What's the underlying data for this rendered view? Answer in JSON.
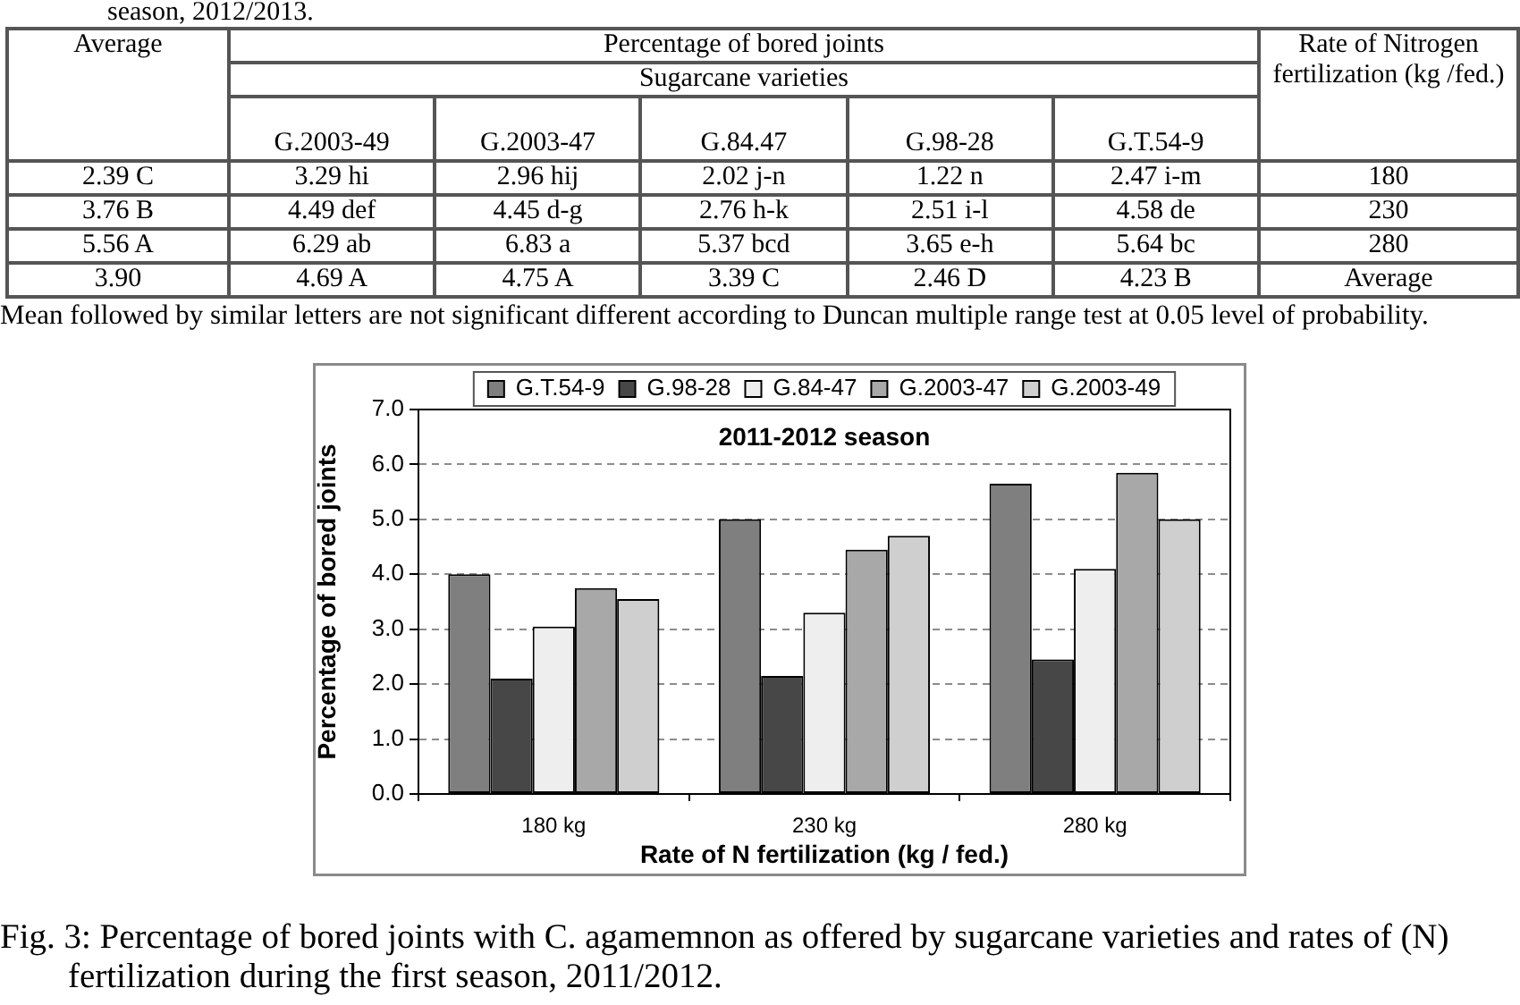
{
  "chart_data": [
    {
      "type": "other",
      "title": "season, 2012/2013.",
      "categories": [
        "Average",
        "G.2003-49",
        "G.2003-47",
        "G.84.47",
        "G.98-28",
        "G.T.54-9",
        "Rate of Nitrogen fertilization (kg /fed.)"
      ],
      "cell_labels": [
        [
          "2.39 C",
          "3.29 hi",
          "2.96 hij",
          "2.02 j-n",
          "1.22 n",
          "2.47 i-m",
          "180"
        ],
        [
          "3.76 B",
          "4.49 def",
          "4.45 d-g",
          "2.76 h-k",
          "2.51 i-l",
          "4.58 de",
          "230"
        ],
        [
          "5.56 A",
          "6.29 ab",
          "6.83 a",
          "5.37 bcd",
          "3.65 e-h",
          "5.64 bc",
          "280"
        ],
        [
          "3.90",
          "4.69 A",
          "4.75 A",
          "3.39 C",
          "2.46 D",
          "4.23 B",
          "Average"
        ]
      ],
      "annotations": [
        "Percentage of bored joints",
        "Sugarcane varieties",
        "Mean followed by similar letters are not significant different according to Duncan multiple range test at 0.05 level of probability."
      ]
    },
    {
      "type": "bar",
      "title": "2011-2012 season",
      "xlabel": "Rate of N fertilization (kg / fed.)",
      "ylabel": "Percentage of bored joints",
      "categories": [
        "180 kg",
        "230 kg",
        "280 kg"
      ],
      "series": [
        {
          "name": "G.T.54-9",
          "color": "#7f7f7f",
          "values": [
            4.0,
            5.0,
            5.65
          ]
        },
        {
          "name": "G.98-28",
          "color": "#474747",
          "values": [
            2.1,
            2.15,
            2.45
          ]
        },
        {
          "name": "G.84-47",
          "color": "#eeeeee",
          "values": [
            3.05,
            3.3,
            4.1
          ]
        },
        {
          "name": "G.2003-47",
          "color": "#a8a8a8",
          "values": [
            3.75,
            4.45,
            5.85
          ]
        },
        {
          "name": "G.2003-49",
          "color": "#cfcfcf",
          "values": [
            3.55,
            4.7,
            5.0
          ]
        }
      ],
      "ylim": [
        0,
        7
      ],
      "yticks": [
        {
          "value": 0,
          "label": "0.0"
        },
        {
          "value": 1,
          "label": "1.0"
        },
        {
          "value": 2,
          "label": "2.0"
        },
        {
          "value": 3,
          "label": "3.0"
        },
        {
          "value": 4,
          "label": "4.0"
        },
        {
          "value": 5,
          "label": "5.0"
        },
        {
          "value": 6,
          "label": "6.0"
        },
        {
          "value": 7,
          "label": "7.0"
        }
      ],
      "grid": "y",
      "legend": "top",
      "annotations": [
        "Fig. 3: Percentage of bored joints with C. agamemnon as offered by sugarcane varieties and rates of (N) fertilization during the first season, 2011/2012."
      ]
    }
  ]
}
